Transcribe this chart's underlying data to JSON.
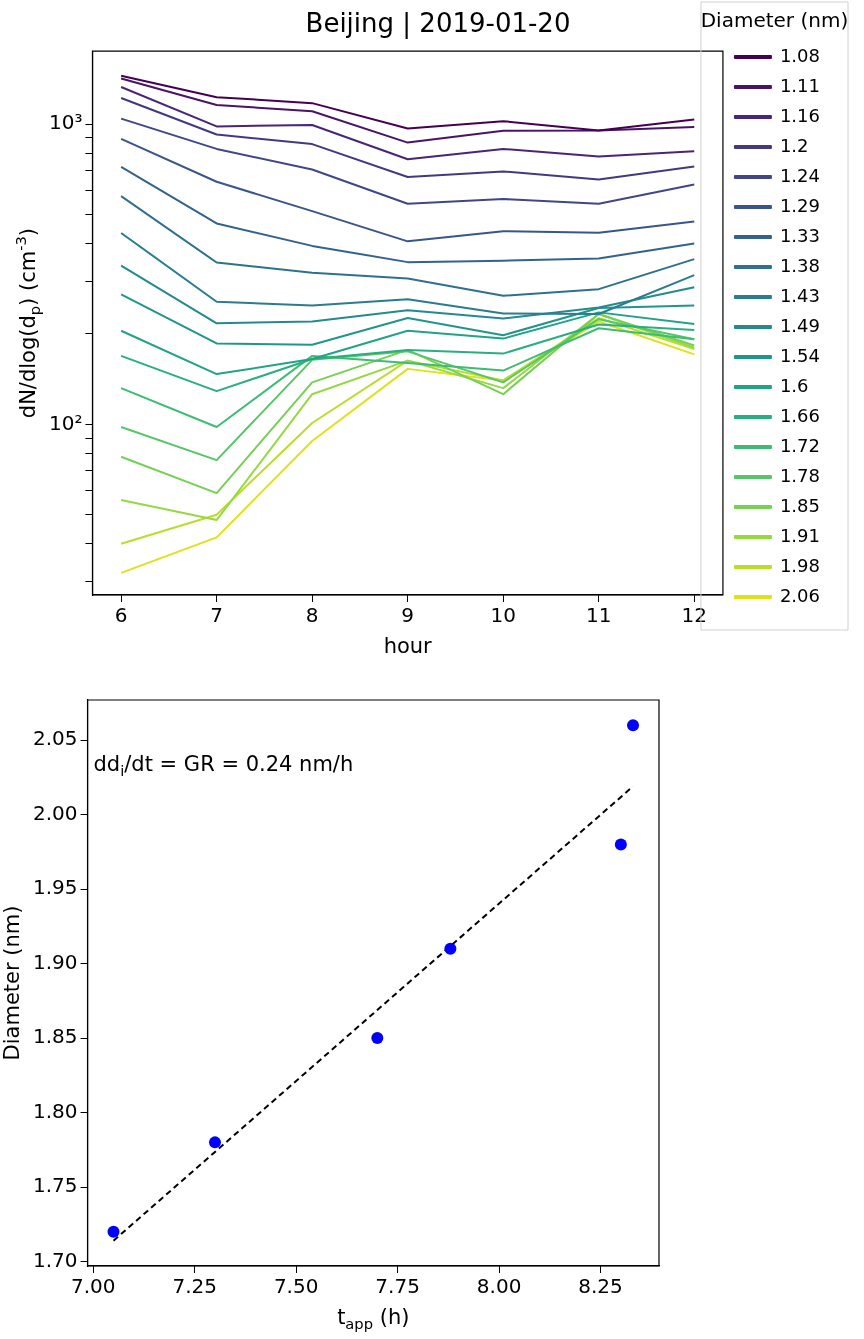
{
  "chart_data": [
    {
      "type": "line",
      "title": "Beijing | 2019-01-20",
      "xlabel": "hour",
      "ylabel": "dN/dlog(d$_{p}$) (cm$^{-3}$)",
      "legend_title": "Diameter (nm)",
      "legend": "right",
      "grid": false,
      "log": "y",
      "marker": "none",
      "line_style": "solid",
      "x": [
        6,
        7,
        8,
        9,
        10,
        11,
        12
      ],
      "xlim": [
        5.7,
        12.3
      ],
      "xticks": [
        6,
        7,
        8,
        9,
        10,
        11,
        12
      ],
      "ylim": [
        27,
        1750
      ],
      "yticks": [
        {
          "value": 30,
          "label": null
        },
        {
          "value": 40,
          "label": null
        },
        {
          "value": 50,
          "label": null
        },
        {
          "value": 60,
          "label": null
        },
        {
          "value": 70,
          "label": null
        },
        {
          "value": 80,
          "label": null
        },
        {
          "value": 90,
          "label": null
        },
        {
          "value": 100,
          "label": "10²"
        },
        {
          "value": 200,
          "label": null
        },
        {
          "value": 300,
          "label": null
        },
        {
          "value": 400,
          "label": null
        },
        {
          "value": 500,
          "label": null
        },
        {
          "value": 600,
          "label": null
        },
        {
          "value": 700,
          "label": null
        },
        {
          "value": 800,
          "label": null
        },
        {
          "value": 900,
          "label": null
        },
        {
          "value": 1000,
          "label": "10³"
        }
      ],
      "series": [
        {
          "name": "1.08",
          "color": "#440154",
          "values": [
            1450,
            1230,
            1175,
            967,
            1023,
            953,
            1037
          ]
        },
        {
          "name": "1.11",
          "color": "#481467",
          "values": [
            1420,
            1159,
            1104,
            868,
            950,
            953,
            978
          ]
        },
        {
          "name": "1.16",
          "color": "#482576",
          "values": [
            1330,
            983,
            994,
            764,
            827,
            780,
            813
          ]
        },
        {
          "name": "1.2",
          "color": "#453781",
          "values": [
            1222,
            924,
            858,
            667,
            696,
            654,
            722
          ]
        },
        {
          "name": "1.24",
          "color": "#404688",
          "values": [
            1043,
            827,
            706,
            543,
            563,
            543,
            629
          ]
        },
        {
          "name": "1.29",
          "color": "#39558c",
          "values": [
            893,
            643,
            513,
            407,
            440,
            435,
            474
          ]
        },
        {
          "name": "1.33",
          "color": "#33638d",
          "values": [
            720,
            467,
            393,
            347,
            351,
            357,
            400
          ]
        },
        {
          "name": "1.38",
          "color": "#2d718e",
          "values": [
            576,
            346,
            320,
            306,
            268,
            282,
            355
          ]
        },
        {
          "name": "1.43",
          "color": "#287d8e",
          "values": [
            434,
            256,
            249,
            261,
            234,
            233,
            314
          ]
        },
        {
          "name": "1.49",
          "color": "#238a8d",
          "values": [
            338,
            217,
            220,
            240,
            225,
            245,
            286
          ]
        },
        {
          "name": "1.54",
          "color": "#1f968b",
          "values": [
            271,
            186,
            184,
            226,
            198,
            244,
            249
          ]
        },
        {
          "name": "1.6",
          "color": "#20a386",
          "values": [
            205,
            147,
            165,
            205,
            193,
            236,
            216
          ]
        },
        {
          "name": "1.66",
          "color": "#29af7f",
          "values": [
            169,
            129,
            165,
            177,
            172,
            215,
            206
          ]
        },
        {
          "name": "1.72",
          "color": "#3dbc74",
          "values": [
            132,
            98,
            169,
            160,
            151,
            209,
            192
          ]
        },
        {
          "name": "1.78",
          "color": "#56c667",
          "values": [
            98,
            76,
            164,
            175,
            138,
            224,
            192
          ]
        },
        {
          "name": "1.85",
          "color": "#75d054",
          "values": [
            78,
            59,
            138,
            177,
            126,
            233,
            183
          ]
        },
        {
          "name": "1.91",
          "color": "#95d840",
          "values": [
            56,
            48,
            126,
            163,
            132,
            233,
            180
          ]
        },
        {
          "name": "1.98",
          "color": "#bade28",
          "values": [
            40,
            50,
            101,
            163,
            140,
            226,
            178
          ]
        },
        {
          "name": "2.06",
          "color": "#dde318",
          "values": [
            32,
            42,
            88,
            153,
            140,
            220,
            171
          ]
        }
      ]
    },
    {
      "type": "scatter",
      "xlabel": "t$_{app}$ (h)",
      "ylabel": "Diameter (nm)",
      "grid": false,
      "legend": false,
      "annotations": [
        "dd$_{i}$/dt = GR = 0.24 nm/h"
      ],
      "xlim": [
        6.986,
        8.394
      ],
      "xticks": [
        {
          "value": 7,
          "label": "7.00"
        },
        {
          "value": 7.25,
          "label": "7.25"
        },
        {
          "value": 7.5,
          "label": "7.50"
        },
        {
          "value": 7.75,
          "label": "7.75"
        },
        {
          "value": 8,
          "label": "8.00"
        },
        {
          "value": 8.25,
          "label": "8.25"
        }
      ],
      "ylim": [
        1.697,
        2.077
      ],
      "yticks": [
        {
          "value": 1.7,
          "label": "1.70"
        },
        1.75,
        {
          "value": 1.8,
          "label": "1.80"
        },
        1.85,
        {
          "value": 1.9,
          "label": "1.90"
        },
        1.95,
        {
          "value": 2.0,
          "label": "2.00"
        },
        2.05
      ],
      "series": [
        {
          "type": "scatter",
          "color": "#0000ff",
          "marker": "circle",
          "x": [
            7.05,
            7.3,
            7.7,
            7.88,
            8.3,
            8.33
          ],
          "values": [
            1.72,
            1.78,
            1.85,
            1.91,
            1.98,
            2.06
          ]
        },
        {
          "type": "line",
          "color": "#000000",
          "marker": "none",
          "line_style": "dashed",
          "x": [
            7.05,
            8.33
          ],
          "values": [
            1.714,
            2.019
          ]
        }
      ]
    }
  ]
}
